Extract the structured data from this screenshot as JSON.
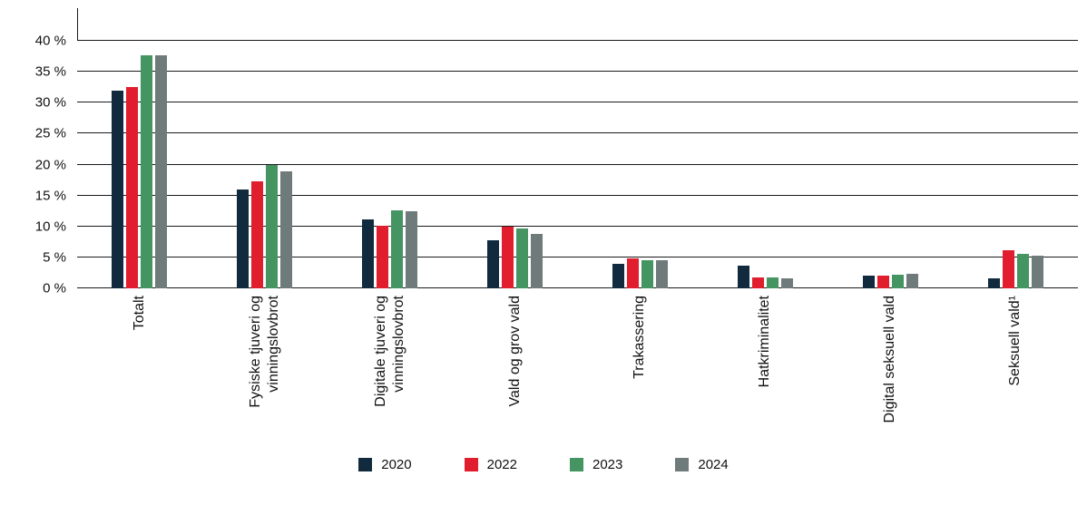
{
  "chart_data": {
    "type": "bar",
    "title": "",
    "xlabel": "",
    "ylabel": "",
    "ylim": [
      0,
      40
    ],
    "ytick_step": 5,
    "ytick_suffix": " %",
    "grid": true,
    "legend_position": "bottom",
    "categories": [
      "Totalt",
      "Fysiske tjuveri og vinningslovbrot",
      "Digitale tjuveri og vinningslovbrot",
      "Vald og grov vald",
      "Trakassering",
      "Hatkriminalitet",
      "Digital seksuell vald",
      "Seksuell vald¹"
    ],
    "series": [
      {
        "name": "2020",
        "color": "#112a3d",
        "values": [
          32.0,
          16.0,
          11.2,
          7.8,
          4.0,
          3.7,
          2.0,
          1.6
        ]
      },
      {
        "name": "2022",
        "color": "#e11e2d",
        "values": [
          32.5,
          17.3,
          10.1,
          9.9,
          4.9,
          1.7,
          2.0,
          6.1
        ]
      },
      {
        "name": "2023",
        "color": "#449561",
        "values": [
          37.7,
          20.0,
          12.6,
          9.6,
          4.6,
          1.8,
          2.2,
          5.5
        ]
      },
      {
        "name": "2024",
        "color": "#6e7b7a",
        "values": [
          37.7,
          18.9,
          12.4,
          8.8,
          4.6,
          1.6,
          2.3,
          5.3
        ]
      }
    ]
  }
}
